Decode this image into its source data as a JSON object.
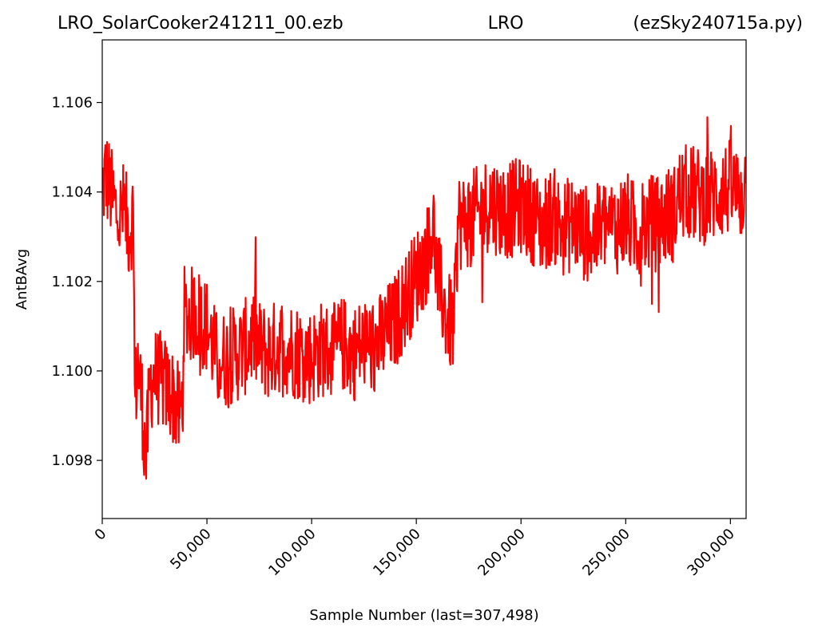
{
  "chart_data": {
    "type": "line",
    "title": {
      "left": "LRO_SolarCooker241211_00.ezb",
      "center": "LRO",
      "right": "(ezSky240715a.py)"
    },
    "xlabel": "Sample Number (last=307,498)",
    "ylabel": "AntBAvg",
    "xlim": [
      0,
      307498
    ],
    "ylim": [
      1.0967,
      1.1074
    ],
    "xticks": [
      0,
      50000,
      100000,
      150000,
      200000,
      250000,
      300000
    ],
    "xtick_labels": [
      "0",
      "50,000",
      "100,000",
      "150,000",
      "200,000",
      "250,000",
      "300,000"
    ],
    "yticks": [
      1.098,
      1.1,
      1.102,
      1.104,
      1.106
    ],
    "ytick_labels": [
      "1.098",
      "1.100",
      "1.102",
      "1.104",
      "1.106"
    ],
    "grid": false,
    "series": [
      {
        "color": "#ff0000",
        "x": [
          0,
          1500,
          3000,
          5000,
          8000,
          10000,
          13000,
          15000,
          15500,
          17000,
          19000,
          20000,
          21000,
          22000,
          23000,
          25000,
          28000,
          31000,
          34000,
          37000,
          38500,
          39000,
          40000,
          45000,
          50000,
          55000,
          60000,
          65000,
          70000,
          72000,
          75000,
          80000,
          85000,
          90000,
          95000,
          100000,
          105000,
          110000,
          115000,
          120000,
          125000,
          130000,
          135000,
          140000,
          145000,
          150000,
          155000,
          158000,
          160000,
          163000,
          165000,
          168000,
          170000,
          172000,
          175000,
          180000,
          185000,
          190000,
          195000,
          200000,
          205000,
          210000,
          215000,
          220000,
          225000,
          230000,
          235000,
          240000,
          245000,
          250000,
          255000,
          260000,
          265000,
          270000,
          273000,
          275000,
          280000,
          285000,
          290000,
          295000,
          300000,
          305000,
          307498
        ],
        "y": [
          1.104,
          1.1044,
          1.1042,
          1.1038,
          1.1034,
          1.1036,
          1.1031,
          1.1036,
          1.0993,
          1.1002,
          1.0993,
          1.0985,
          1.098,
          1.099,
          1.0997,
          1.0999,
          1.0998,
          1.0996,
          1.0994,
          1.099,
          1.0994,
          1.1013,
          1.1012,
          1.1013,
          1.101,
          1.1002,
          1.1003,
          1.1004,
          1.1006,
          1.1008,
          1.1005,
          1.1004,
          1.1006,
          1.1005,
          1.1004,
          1.1003,
          1.1005,
          1.1004,
          1.1006,
          1.1004,
          1.1006,
          1.1005,
          1.1008,
          1.1011,
          1.1016,
          1.1021,
          1.1026,
          1.1033,
          1.1021,
          1.1015,
          1.1011,
          1.101,
          1.1034,
          1.1033,
          1.1034,
          1.1035,
          1.1038,
          1.1036,
          1.1036,
          1.1037,
          1.1035,
          1.1032,
          1.1035,
          1.1032,
          1.1033,
          1.1031,
          1.103,
          1.1033,
          1.1032,
          1.1034,
          1.1031,
          1.1033,
          1.1033,
          1.1035,
          1.1035,
          1.1039,
          1.104,
          1.1039,
          1.1039,
          1.104,
          1.1041,
          1.1039,
          1.1042
        ]
      }
    ]
  }
}
